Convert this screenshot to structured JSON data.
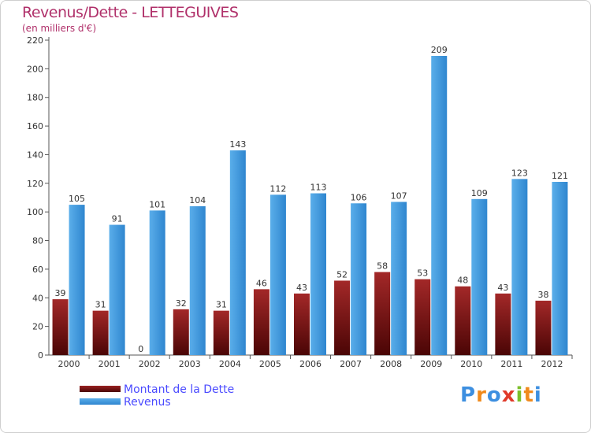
{
  "chart_data": {
    "type": "bar",
    "title": "Revenus/Dette - LETTEGUIVES",
    "subtitle": "(en milliers d'€)",
    "categories": [
      "2000",
      "2001",
      "2002",
      "2003",
      "2004",
      "2005",
      "2006",
      "2007",
      "2008",
      "2009",
      "2010",
      "2011",
      "2012"
    ],
    "series": [
      {
        "name": "Montant de la Dette",
        "color": "#7a1010",
        "values": [
          39,
          31,
          0,
          32,
          31,
          46,
          43,
          52,
          58,
          53,
          48,
          43,
          38
        ]
      },
      {
        "name": "Revenus",
        "color": "#3d9be0",
        "values": [
          105,
          91,
          101,
          104,
          143,
          112,
          113,
          106,
          107,
          209,
          109,
          123,
          121
        ]
      }
    ],
    "ylim": [
      0,
      220
    ],
    "yticks": [
      0,
      20,
      40,
      60,
      80,
      100,
      120,
      140,
      160,
      180,
      200,
      220
    ],
    "grid": false,
    "legend_position": "bottom-left",
    "xlabel": "",
    "ylabel": ""
  },
  "logo": {
    "text": "Proxiti",
    "colors": [
      "#3d8fe0",
      "#f08a1c",
      "#3d8fe0",
      "#e03a2a",
      "#7cbf2a",
      "#f08a1c",
      "#3d8fe0"
    ]
  }
}
